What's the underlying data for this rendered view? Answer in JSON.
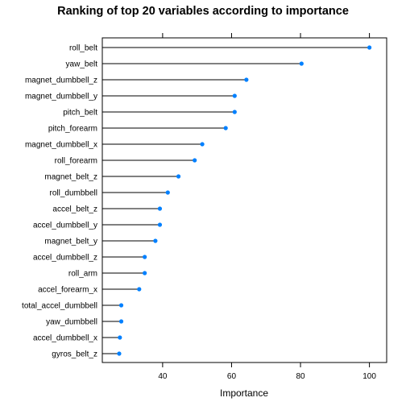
{
  "chart_data": {
    "type": "dotplot",
    "title": "Ranking of top 20 variables according to importance",
    "xlabel": "Importance",
    "ylabel": "",
    "xlim": [
      22.5,
      105
    ],
    "xticks": [
      40,
      60,
      80,
      100
    ],
    "grid": false,
    "legend": "none",
    "color": "#0080ff",
    "categories": [
      "roll_belt",
      "yaw_belt",
      "magnet_dumbbell_z",
      "magnet_dumbbell_y",
      "pitch_belt",
      "pitch_forearm",
      "magnet_dumbbell_x",
      "roll_forearm",
      "magnet_belt_z",
      "roll_dumbbell",
      "accel_belt_z",
      "accel_dumbbell_y",
      "magnet_belt_y",
      "accel_dumbbell_z",
      "roll_arm",
      "accel_forearm_x",
      "total_accel_dumbbell",
      "yaw_dumbbell",
      "accel_dumbbell_x",
      "gyros_belt_z"
    ],
    "values": [
      100,
      80.3,
      64.3,
      60.9,
      60.9,
      58.3,
      51.5,
      49.3,
      44.6,
      41.5,
      39.2,
      39.2,
      37.9,
      34.8,
      34.8,
      33.2,
      28.0,
      28.0,
      27.6,
      27.4
    ]
  }
}
